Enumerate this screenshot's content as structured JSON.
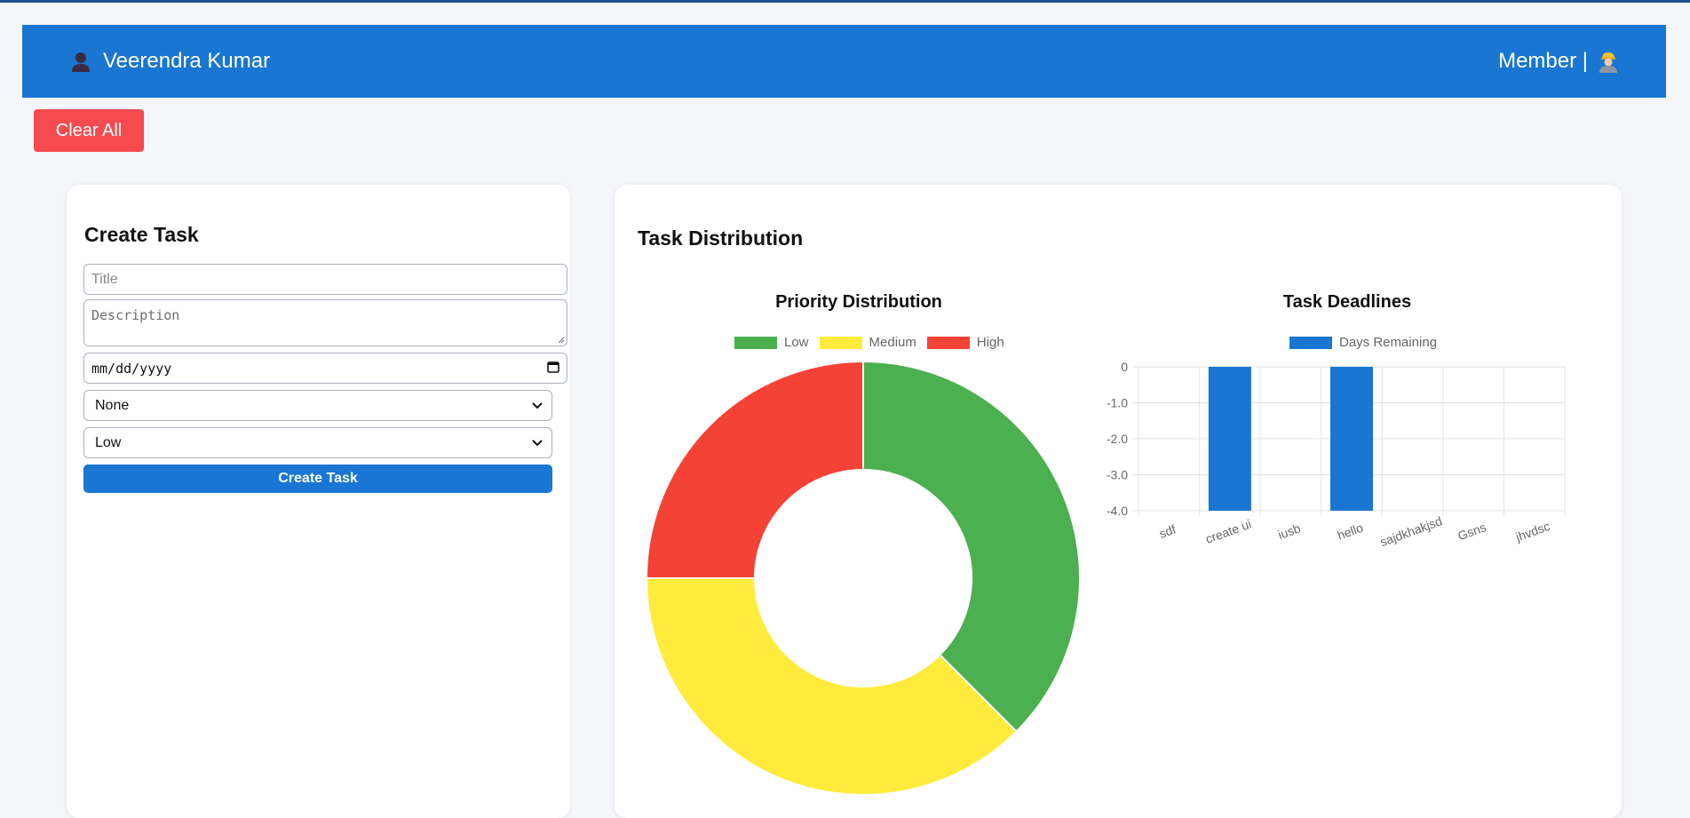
{
  "header": {
    "user_name": "Veerendra Kumar",
    "role_label": "Member |",
    "user_icon": "user-avatar-icon",
    "member_icon": "worker-avatar-icon"
  },
  "actions": {
    "clear_all_label": "Clear All"
  },
  "create_task": {
    "heading": "Create Task",
    "title_placeholder": "Title",
    "description_placeholder": "Description",
    "date_placeholder": "mm/dd/yyyy",
    "assignee_value": "None",
    "priority_value": "Low",
    "submit_label": "Create Task"
  },
  "distribution": {
    "heading": "Task Distribution"
  },
  "colors": {
    "header_bg": "#1976d2",
    "clear_button": "#f54b4f",
    "low": "#4caf50",
    "medium": "#ffeb3b",
    "high": "#f44336",
    "bar": "#1976d2"
  },
  "chart_data": [
    {
      "type": "pie",
      "variant": "doughnut",
      "title": "Priority Distribution",
      "legend_position": "top",
      "categories": [
        "Low",
        "Medium",
        "High"
      ],
      "values": [
        3,
        3,
        2
      ],
      "colors": [
        "#4caf50",
        "#ffeb3b",
        "#f44336"
      ]
    },
    {
      "type": "bar",
      "title": "Task Deadlines",
      "legend_position": "top",
      "categories": [
        "sdf",
        "create ui",
        "iusb",
        "hello",
        "sajdkhakjsd",
        "Gsns",
        "jhvdsc"
      ],
      "series": [
        {
          "name": "Days Remaining",
          "values": [
            0,
            -4,
            0,
            -4,
            0,
            0,
            0
          ]
        }
      ],
      "ylim": [
        -4,
        0
      ],
      "yticks": [
        "0",
        "-1.0",
        "-2.0",
        "-3.0",
        "-4.0"
      ],
      "grid": true
    }
  ]
}
